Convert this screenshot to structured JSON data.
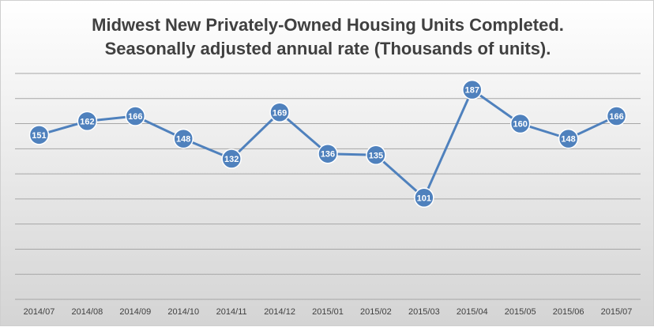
{
  "chart_data": {
    "type": "line",
    "title": [
      "Midwest New Privately-Owned Housing Units Completed.",
      "Seasonally adjusted annual rate (Thousands of units)."
    ],
    "xlabel": "",
    "ylabel": "",
    "categories": [
      "2014/07",
      "2014/08",
      "2014/09",
      "2014/10",
      "2014/11",
      "2014/12",
      "2015/01",
      "2015/02",
      "2015/03",
      "2015/04",
      "2015/05",
      "2015/06",
      "2015/07"
    ],
    "series": [
      {
        "values": [
          151,
          162,
          166,
          148,
          132,
          169,
          136,
          135,
          101,
          187,
          160,
          148,
          166
        ]
      }
    ],
    "ylim": [
      20,
      200
    ],
    "grid": true,
    "legend": "none",
    "data_labels": true,
    "colors": {
      "line": "#4f81bd",
      "marker": "#4f81bd",
      "grid": "#a6a6a6",
      "label_text": "#ffffff"
    }
  }
}
